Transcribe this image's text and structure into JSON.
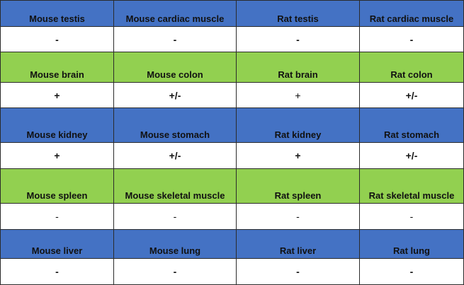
{
  "colors": {
    "blue": "#4472C4",
    "green": "#92D050",
    "grid": "#2b2b2b"
  },
  "rows": [
    {
      "kind": "header",
      "color": "blue",
      "cells": [
        "Mouse testis",
        "Mouse cardiac muscle",
        "Rat testis",
        "Rat cardiac muscle"
      ]
    },
    {
      "kind": "values",
      "cells": [
        "-",
        "-",
        "-",
        "-"
      ],
      "light": [
        false,
        false,
        false,
        false
      ]
    },
    {
      "kind": "header",
      "color": "green",
      "cells": [
        "Mouse brain",
        "Mouse colon",
        "Rat brain",
        "Rat colon"
      ]
    },
    {
      "kind": "values",
      "cells": [
        "+",
        "+/-",
        "+",
        "+/-"
      ],
      "light": [
        false,
        false,
        true,
        false
      ]
    },
    {
      "kind": "header",
      "color": "blue",
      "cells": [
        "Mouse kidney",
        "Mouse stomach",
        "Rat kidney",
        "Rat stomach"
      ]
    },
    {
      "kind": "values",
      "cells": [
        "+",
        "+/-",
        "+",
        "+/-"
      ],
      "light": [
        false,
        false,
        false,
        false
      ]
    },
    {
      "kind": "header",
      "color": "green",
      "cells": [
        "Mouse spleen",
        "Mouse skeletal muscle",
        "Rat spleen",
        "Rat skeletal muscle"
      ]
    },
    {
      "kind": "values",
      "cells": [
        "-",
        "-",
        "-",
        "-"
      ],
      "light": [
        true,
        true,
        true,
        true
      ]
    },
    {
      "kind": "header",
      "color": "blue",
      "cells": [
        "Mouse liver",
        "Mouse lung",
        "Rat liver",
        "Rat lung"
      ]
    },
    {
      "kind": "values",
      "cells": [
        "-",
        "-",
        "-",
        "-"
      ],
      "light": [
        false,
        false,
        false,
        false
      ]
    }
  ]
}
